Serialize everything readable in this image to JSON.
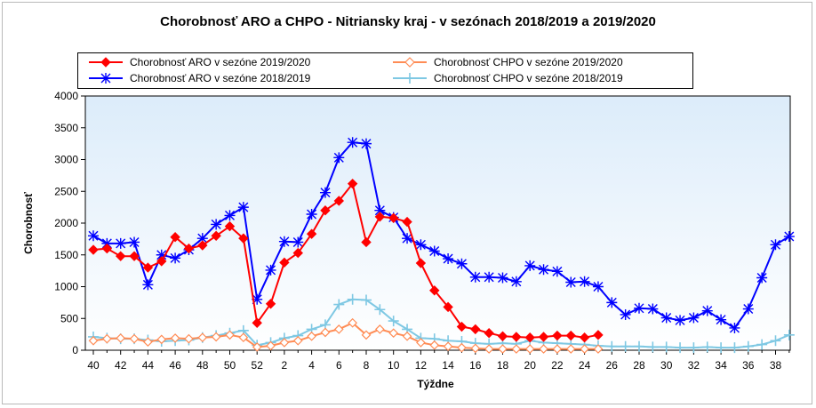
{
  "chart_data": {
    "type": "line",
    "title": "Chorobnosť ARO a CHPO - Nitriansky kraj - v sezónach 2018/2019 a 2019/2020",
    "xlabel": "Týždne",
    "ylabel": "Chorobnosť",
    "ylim": [
      0,
      4000
    ],
    "yticks": [
      "0",
      "500",
      "1000",
      "1500",
      "2000",
      "2500",
      "3000",
      "3500",
      "4000"
    ],
    "week_order": [
      40,
      41,
      42,
      43,
      44,
      45,
      46,
      47,
      48,
      49,
      50,
      51,
      52,
      1,
      2,
      3,
      4,
      5,
      6,
      7,
      8,
      9,
      10,
      11,
      12,
      13,
      14,
      15,
      16,
      17,
      18,
      19,
      20,
      21,
      22,
      23,
      24,
      25,
      26,
      27,
      28,
      29,
      30,
      31,
      32,
      33,
      34,
      35,
      36,
      37,
      38,
      39
    ],
    "xtick_labels": [
      "40",
      "42",
      "44",
      "46",
      "48",
      "50",
      "52",
      "2",
      "4",
      "6",
      "8",
      "10",
      "12",
      "14",
      "16",
      "18",
      "20",
      "22",
      "24",
      "26",
      "28",
      "30",
      "32",
      "34",
      "36",
      "38"
    ],
    "grid": false,
    "legend_position": "top",
    "series": [
      {
        "name": "Chorobnosť ARO v sezóne 2019/2020",
        "color": "#ff0000",
        "marker": "diamond-filled",
        "values": [
          1580,
          1600,
          1480,
          1480,
          1300,
          1400,
          1780,
          1600,
          1650,
          1800,
          1950,
          1760,
          430,
          730,
          1380,
          1530,
          1830,
          2200,
          2350,
          2620,
          1700,
          2100,
          2080,
          2020,
          1370,
          940,
          680,
          370,
          330,
          270,
          220,
          210,
          200,
          210,
          230,
          230,
          200,
          240,
          null,
          null,
          null,
          null,
          null,
          null,
          null,
          null,
          null,
          null,
          null,
          null,
          null,
          null
        ]
      },
      {
        "name": "Chorobnosť ARO v sezóne 2018/2019",
        "color": "#0000ff",
        "marker": "star",
        "values": [
          1800,
          1680,
          1680,
          1700,
          1030,
          1500,
          1450,
          1580,
          1760,
          1980,
          2120,
          2250,
          800,
          1260,
          1710,
          1700,
          2140,
          2480,
          3030,
          3270,
          3250,
          2200,
          2090,
          1760,
          1660,
          1560,
          1440,
          1360,
          1150,
          1150,
          1140,
          1080,
          1330,
          1270,
          1240,
          1070,
          1080,
          1000,
          750,
          560,
          660,
          650,
          510,
          470,
          510,
          620,
          480,
          350,
          650,
          1140,
          1660,
          1790
        ]
      },
      {
        "name": "Chorobnosť CHPO v sezóne 2019/2020",
        "color": "#ff8c55",
        "marker": "diamond-open",
        "values": [
          150,
          180,
          190,
          180,
          130,
          170,
          190,
          180,
          200,
          210,
          240,
          200,
          50,
          70,
          120,
          150,
          220,
          280,
          330,
          430,
          240,
          330,
          270,
          220,
          120,
          80,
          60,
          40,
          30,
          20,
          20,
          20,
          20,
          20,
          20,
          20,
          20,
          20,
          null,
          null,
          null,
          null,
          null,
          null,
          null,
          null,
          null,
          null,
          null,
          null,
          null,
          null
        ]
      },
      {
        "name": "Chorobnosť CHPO v sezóne 2018/2019",
        "color": "#7ec8e3",
        "marker": "plus",
        "values": [
          210,
          190,
          180,
          180,
          160,
          140,
          150,
          160,
          200,
          230,
          270,
          310,
          80,
          120,
          190,
          230,
          330,
          400,
          720,
          800,
          790,
          640,
          460,
          330,
          190,
          180,
          150,
          140,
          110,
          100,
          110,
          100,
          150,
          120,
          110,
          100,
          90,
          70,
          60,
          60,
          60,
          50,
          50,
          40,
          40,
          50,
          40,
          40,
          60,
          90,
          150,
          240
        ]
      }
    ]
  }
}
